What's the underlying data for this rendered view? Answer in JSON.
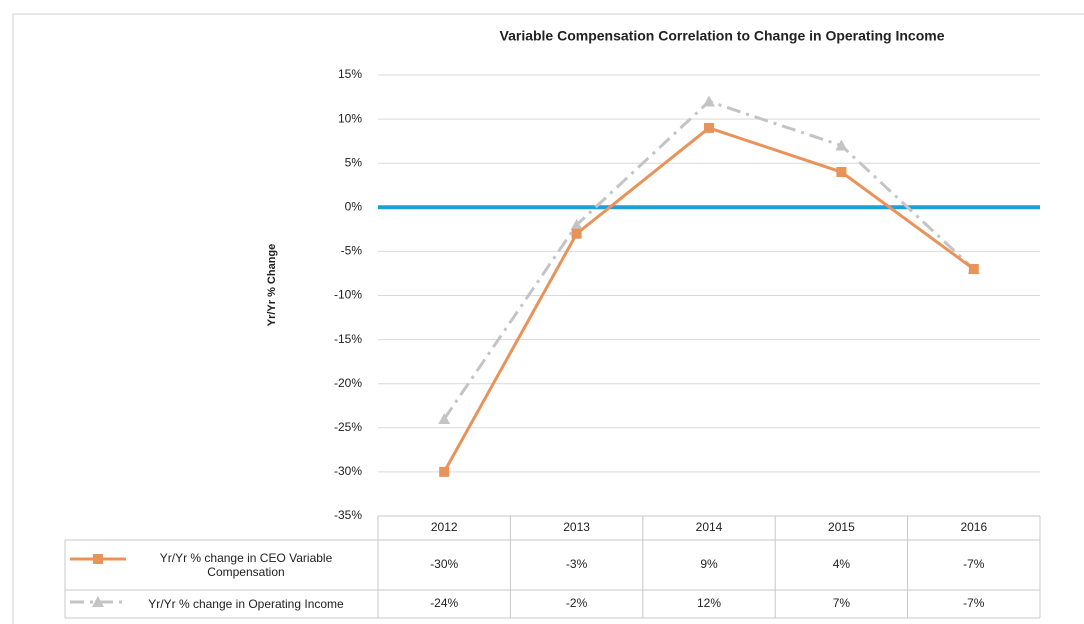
{
  "chart_data": {
    "type": "line",
    "title": "Variable Compensation Correlation to Change in Operating Income",
    "y_label": "Yr/Yr % Change",
    "categories": [
      "2012",
      "2013",
      "2014",
      "2015",
      "2016"
    ],
    "series": [
      {
        "name": "Yr/Yr % change in CEO Variable Compensation",
        "color": "#e8935a",
        "marker": "square",
        "dashed": false,
        "values": [
          -30,
          -3,
          9,
          4,
          -7
        ],
        "value_labels": [
          "-30%",
          "-3%",
          "9%",
          "4%",
          "-7%"
        ]
      },
      {
        "name": "Yr/Yr % change in Operating Income",
        "color": "#c4c4c4",
        "marker": "triangle",
        "dashed": true,
        "values": [
          -24,
          -2,
          12,
          7,
          -7
        ],
        "value_labels": [
          "-24%",
          "-2%",
          "12%",
          "7%",
          "-7%"
        ]
      }
    ],
    "ylim": [
      -35,
      15
    ],
    "yticks": [
      {
        "value": -35,
        "label": "-35%"
      },
      {
        "value": -30,
        "label": "-30%"
      },
      {
        "value": -25,
        "label": "-25%"
      },
      {
        "value": -20,
        "label": "-20%"
      },
      {
        "value": -15,
        "label": "-15%"
      },
      {
        "value": -10,
        "label": "-10%"
      },
      {
        "value": -5,
        "label": "-5%"
      },
      {
        "value": 0,
        "label": "0%"
      },
      {
        "value": 5,
        "label": "5%"
      },
      {
        "value": 10,
        "label": "10%"
      },
      {
        "value": 15,
        "label": "15%"
      }
    ],
    "grid": true,
    "zero_line_color": "#1ba1d8",
    "data_table": true
  }
}
